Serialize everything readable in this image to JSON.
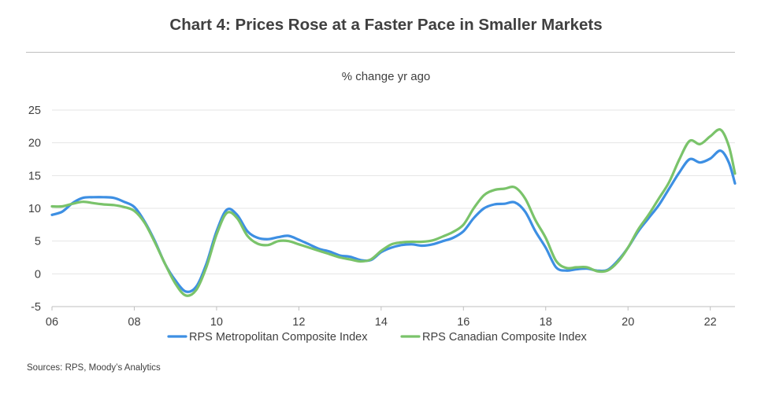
{
  "title": "Chart 4: Prices Rose at a Faster Pace in Smaller Markets",
  "subtitle": "% change yr ago",
  "source": "Sources: RPS, Moody’s Analytics",
  "colors": {
    "metro": "#3d8fe3",
    "canadian": "#7ac36a",
    "grid": "#e4e4e4",
    "axis": "#bfbfbf"
  },
  "chart_data": {
    "type": "line",
    "title": "Chart 4: Prices Rose at a Faster Pace in Smaller Markets",
    "subtitle": "% change yr ago",
    "xlabel": "",
    "ylabel": "",
    "xlim": [
      2006,
      2022.6
    ],
    "ylim": [
      -5,
      25
    ],
    "yticks": [
      -5,
      0,
      5,
      10,
      15,
      20,
      25
    ],
    "xticks": [
      {
        "value": 2006,
        "label": "06"
      },
      {
        "value": 2008,
        "label": "08"
      },
      {
        "value": 2010,
        "label": "10"
      },
      {
        "value": 2012,
        "label": "12"
      },
      {
        "value": 2014,
        "label": "14"
      },
      {
        "value": 2016,
        "label": "16"
      },
      {
        "value": 2018,
        "label": "18"
      },
      {
        "value": 2020,
        "label": "20"
      },
      {
        "value": 2022,
        "label": "22"
      }
    ],
    "grid": true,
    "legend_position": "bottom",
    "series": [
      {
        "name": "RPS Metropolitan Composite Index",
        "color": "#3d8fe3",
        "points": [
          [
            2006.0,
            9.0
          ],
          [
            2006.25,
            9.5
          ],
          [
            2006.5,
            10.8
          ],
          [
            2006.75,
            11.6
          ],
          [
            2007.0,
            11.7
          ],
          [
            2007.25,
            11.7
          ],
          [
            2007.5,
            11.6
          ],
          [
            2007.75,
            11.0
          ],
          [
            2008.0,
            10.2
          ],
          [
            2008.25,
            8.0
          ],
          [
            2008.5,
            5.0
          ],
          [
            2008.75,
            1.5
          ],
          [
            2009.0,
            -1.0
          ],
          [
            2009.25,
            -2.7
          ],
          [
            2009.5,
            -2.0
          ],
          [
            2009.75,
            1.5
          ],
          [
            2010.0,
            6.5
          ],
          [
            2010.25,
            9.8
          ],
          [
            2010.5,
            9.0
          ],
          [
            2010.75,
            6.5
          ],
          [
            2011.0,
            5.5
          ],
          [
            2011.25,
            5.3
          ],
          [
            2011.5,
            5.6
          ],
          [
            2011.75,
            5.8
          ],
          [
            2012.0,
            5.2
          ],
          [
            2012.25,
            4.5
          ],
          [
            2012.5,
            3.8
          ],
          [
            2012.75,
            3.4
          ],
          [
            2013.0,
            2.8
          ],
          [
            2013.25,
            2.6
          ],
          [
            2013.5,
            2.1
          ],
          [
            2013.75,
            2.1
          ],
          [
            2014.0,
            3.3
          ],
          [
            2014.25,
            4.0
          ],
          [
            2014.5,
            4.4
          ],
          [
            2014.75,
            4.5
          ],
          [
            2015.0,
            4.3
          ],
          [
            2015.25,
            4.5
          ],
          [
            2015.5,
            5.0
          ],
          [
            2015.75,
            5.5
          ],
          [
            2016.0,
            6.5
          ],
          [
            2016.25,
            8.5
          ],
          [
            2016.5,
            10.0
          ],
          [
            2016.75,
            10.6
          ],
          [
            2017.0,
            10.7
          ],
          [
            2017.25,
            10.9
          ],
          [
            2017.5,
            9.5
          ],
          [
            2017.75,
            6.5
          ],
          [
            2018.0,
            4.0
          ],
          [
            2018.25,
            1.0
          ],
          [
            2018.5,
            0.5
          ],
          [
            2018.75,
            0.7
          ],
          [
            2019.0,
            0.8
          ],
          [
            2019.25,
            0.5
          ],
          [
            2019.5,
            0.6
          ],
          [
            2019.75,
            2.0
          ],
          [
            2020.0,
            4.0
          ],
          [
            2020.25,
            6.5
          ],
          [
            2020.5,
            8.5
          ],
          [
            2020.75,
            10.5
          ],
          [
            2021.0,
            13.0
          ],
          [
            2021.25,
            15.5
          ],
          [
            2021.5,
            17.5
          ],
          [
            2021.75,
            17.0
          ],
          [
            2022.0,
            17.6
          ],
          [
            2022.25,
            18.8
          ],
          [
            2022.45,
            17.0
          ],
          [
            2022.6,
            13.8
          ]
        ]
      },
      {
        "name": "RPS Canadian Composite Index",
        "color": "#7ac36a",
        "points": [
          [
            2006.0,
            10.3
          ],
          [
            2006.25,
            10.3
          ],
          [
            2006.5,
            10.7
          ],
          [
            2006.75,
            11.0
          ],
          [
            2007.0,
            10.8
          ],
          [
            2007.25,
            10.6
          ],
          [
            2007.5,
            10.5
          ],
          [
            2007.75,
            10.2
          ],
          [
            2008.0,
            9.6
          ],
          [
            2008.25,
            7.8
          ],
          [
            2008.5,
            4.8
          ],
          [
            2008.75,
            1.5
          ],
          [
            2009.0,
            -1.5
          ],
          [
            2009.25,
            -3.3
          ],
          [
            2009.5,
            -2.5
          ],
          [
            2009.75,
            1.0
          ],
          [
            2010.0,
            6.0
          ],
          [
            2010.25,
            9.3
          ],
          [
            2010.5,
            8.5
          ],
          [
            2010.75,
            5.8
          ],
          [
            2011.0,
            4.6
          ],
          [
            2011.25,
            4.4
          ],
          [
            2011.5,
            5.0
          ],
          [
            2011.75,
            5.0
          ],
          [
            2012.0,
            4.5
          ],
          [
            2012.25,
            4.0
          ],
          [
            2012.5,
            3.5
          ],
          [
            2012.75,
            3.0
          ],
          [
            2013.0,
            2.5
          ],
          [
            2013.25,
            2.2
          ],
          [
            2013.5,
            1.9
          ],
          [
            2013.75,
            2.2
          ],
          [
            2014.0,
            3.5
          ],
          [
            2014.25,
            4.5
          ],
          [
            2014.5,
            4.8
          ],
          [
            2014.75,
            4.9
          ],
          [
            2015.0,
            4.9
          ],
          [
            2015.25,
            5.1
          ],
          [
            2015.5,
            5.7
          ],
          [
            2015.75,
            6.4
          ],
          [
            2016.0,
            7.5
          ],
          [
            2016.25,
            10.0
          ],
          [
            2016.5,
            12.0
          ],
          [
            2016.75,
            12.8
          ],
          [
            2017.0,
            13.0
          ],
          [
            2017.25,
            13.2
          ],
          [
            2017.5,
            11.5
          ],
          [
            2017.75,
            8.2
          ],
          [
            2018.0,
            5.5
          ],
          [
            2018.25,
            2.0
          ],
          [
            2018.5,
            0.9
          ],
          [
            2018.75,
            1.0
          ],
          [
            2019.0,
            1.0
          ],
          [
            2019.25,
            0.4
          ],
          [
            2019.5,
            0.5
          ],
          [
            2019.75,
            1.8
          ],
          [
            2020.0,
            4.0
          ],
          [
            2020.25,
            6.8
          ],
          [
            2020.5,
            9.0
          ],
          [
            2020.75,
            11.5
          ],
          [
            2021.0,
            14.0
          ],
          [
            2021.25,
            17.5
          ],
          [
            2021.5,
            20.3
          ],
          [
            2021.75,
            19.8
          ],
          [
            2022.0,
            21.0
          ],
          [
            2022.25,
            22.0
          ],
          [
            2022.45,
            19.5
          ],
          [
            2022.6,
            15.3
          ]
        ]
      }
    ]
  }
}
